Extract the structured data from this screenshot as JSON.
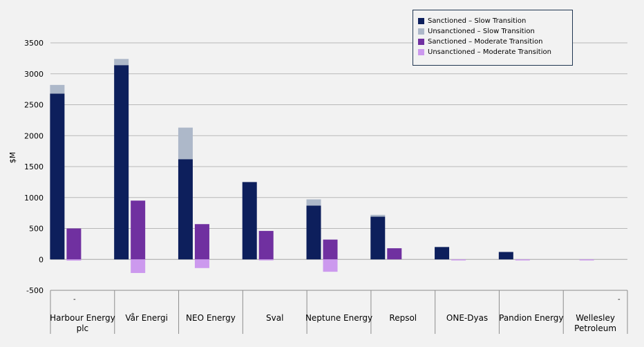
{
  "chart_data": {
    "type": "bar",
    "title": "",
    "xlabel": "",
    "ylabel": "$M",
    "ylim": [
      -500,
      3500
    ],
    "yticks": [
      3500,
      3000,
      2500,
      2000,
      1500,
      1000,
      500,
      0,
      -500
    ],
    "grid": true,
    "legend_position": "top-right",
    "categories": [
      "Harbour Energy plc",
      "Vår Energi",
      "NEO Energy",
      "Sval",
      "Neptune Energy",
      "Repsol",
      "ONE-Dyas",
      "Pandion Energy",
      "Wellesley Petroleum"
    ],
    "stacks": [
      {
        "name": "Slow Transition",
        "series": [
          {
            "name": "Sanctioned – Slow Transition",
            "color": "#0d1f5c",
            "values": [
              2680,
              3140,
              1620,
              1250,
              870,
              690,
              200,
              120,
              0
            ]
          },
          {
            "name": "Unsanctioned – Slow Transition",
            "color": "#adb8c9",
            "values": [
              140,
              100,
              510,
              0,
              100,
              30,
              0,
              0,
              0
            ]
          }
        ]
      },
      {
        "name": "Moderate Transition",
        "series": [
          {
            "name": "Sanctioned – Moderate Transition",
            "color": "#7030a0",
            "values": [
              500,
              950,
              570,
              460,
              320,
              180,
              0,
              0,
              0
            ]
          },
          {
            "name": "Unsanctioned – Moderate Transition",
            "color": "#cc99ee",
            "values": [
              -20,
              -220,
              -140,
              -10,
              -200,
              0,
              -10,
              -10,
              -10
            ]
          }
        ]
      }
    ],
    "stray_marks": [
      "-",
      "-"
    ]
  }
}
